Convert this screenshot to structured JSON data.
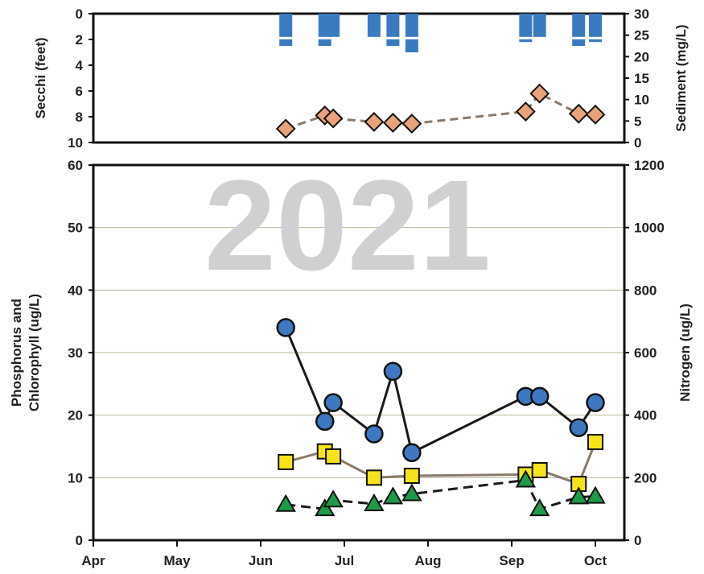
{
  "chart_data": [
    {
      "type": "bar+line",
      "panel": "top",
      "left_axis": {
        "label": "Secchi (feet)",
        "ticks": [
          "0",
          "2",
          "4",
          "6",
          "8",
          "10"
        ],
        "range": [
          0,
          10
        ],
        "inverted": true
      },
      "right_axis": {
        "label": "Sediment (mg/L)",
        "ticks": [
          "30",
          "25",
          "20",
          "15",
          "10",
          "5",
          "0"
        ],
        "range": [
          0,
          30
        ]
      },
      "series": [
        {
          "kind": "secchi_bars",
          "color": "#3a7bbf",
          "dates": [
            "Jun 24",
            "Jun 10",
            "Jun 27",
            "Jul 12",
            "Jul 19",
            "Jul 26",
            "Sep 6",
            "Sep 11",
            "Sep 25",
            "Oct 1"
          ],
          "values": [
            1.8,
            1.8,
            1.8,
            1.8,
            1.8,
            1.8,
            1.8,
            1.8,
            1.8,
            1.8
          ],
          "extra_marks": [
            [
              2.5
            ],
            [
              2.5
            ],
            [],
            [],
            [
              2.5
            ],
            [
              3
            ],
            [
              2.2
            ],
            [],
            [
              2.5
            ],
            [
              2.2
            ]
          ]
        },
        {
          "kind": "sediment_line",
          "marker": "diamond",
          "color": "#e9a37a",
          "line_color": "#8a7a6a",
          "dates": [
            "Jun 24",
            "Jun 10",
            "Jun 27",
            "Jul 12",
            "Jul 19",
            "Jul 26",
            "Sep 6",
            "Sep 11",
            "Sep 25",
            "Oct 1"
          ],
          "values": [
            6.3,
            3.2,
            5.6,
            4.8,
            4.6,
            4.4,
            7.2,
            11.4,
            6.7,
            6.5
          ]
        }
      ]
    },
    {
      "type": "line",
      "panel": "bottom",
      "watermark": "2021",
      "left_axis": {
        "label_lines": [
          "Phosphorus and",
          "Chlorophyll (ug/L)"
        ],
        "ticks": [
          "0",
          "10",
          "20",
          "30",
          "40",
          "50",
          "60"
        ],
        "range": [
          0,
          60
        ]
      },
      "right_axis": {
        "label": "Nitrogen (ug/L)",
        "ticks": [
          "0",
          "200",
          "400",
          "600",
          "800",
          "1000",
          "1200"
        ],
        "range": [
          0,
          1200
        ]
      },
      "x_axis": {
        "ticks": [
          "Apr",
          "May",
          "Jun",
          "Jul",
          "Aug",
          "Sep",
          "Oct"
        ]
      },
      "series": [
        {
          "marker": "circle",
          "color": "#3d78c0",
          "line_color": "#1a1a1a",
          "dash": "solid",
          "dates": [
            "Jun 24",
            "Jun 10",
            "Jun 27",
            "Jul 12",
            "Jul 19",
            "Jul 26",
            "Sep 6",
            "Sep 11",
            "Sep 25",
            "Oct 1"
          ],
          "values": [
            19,
            34,
            22,
            17,
            27,
            14,
            23,
            23,
            18,
            22
          ]
        },
        {
          "marker": "square",
          "color": "#f5e41b",
          "line_color": "#8a7a6a",
          "dash": "solid",
          "dates": [
            "Jun 24",
            "Jun 10",
            "Jun 27",
            "Jul 12",
            "Jul 26",
            "Sep 6",
            "Sep 11",
            "Sep 25",
            "Oct 1"
          ],
          "values": [
            14.2,
            12.5,
            13.4,
            10.0,
            10.3,
            10.5,
            11.2,
            9.0,
            15.7
          ]
        },
        {
          "marker": "triangle",
          "color": "#1e9a48",
          "line_color": "#1a1a1a",
          "dash": "dashed",
          "dates": [
            "Jun 24",
            "Jun 10",
            "Jun 27",
            "Jul 12",
            "Jul 19",
            "Jul 26",
            "Sep 6",
            "Sep 11",
            "Sep 25",
            "Oct 1"
          ],
          "values": [
            5.0,
            5.7,
            6.4,
            5.8,
            6.9,
            7.4,
            9.6,
            5.0,
            6.9,
            7.0
          ]
        }
      ]
    }
  ]
}
